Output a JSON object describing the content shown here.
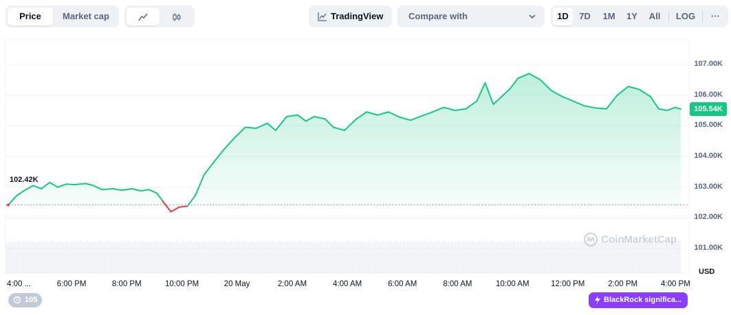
{
  "toolbar": {
    "metric_tabs": [
      "Price",
      "Market cap"
    ],
    "active_metric": "Price",
    "tradingview_label": "TradingView",
    "compare_placeholder": "Compare with",
    "ranges": [
      "1D",
      "7D",
      "1M",
      "1Y",
      "All"
    ],
    "active_range": "1D",
    "log_label": "LOG",
    "more_label": "···"
  },
  "colors": {
    "up": "#16c784",
    "down": "#ea3943",
    "accent": "#8a3ffc"
  },
  "chart_data": {
    "type": "area",
    "currency_label": "USD",
    "open_price_label": "102.42K",
    "current_price_label": "105.54K",
    "open_price": 102.42,
    "current_price": 105.54,
    "y_ticks": [
      "107.00K",
      "106.00K",
      "105.00K",
      "104.00K",
      "103.00K",
      "102.00K",
      "101.00K"
    ],
    "y_tick_values": [
      107,
      106,
      105,
      104,
      103,
      102,
      101
    ],
    "ylim": [
      100.2,
      107.8
    ],
    "x_ticks": [
      "4:00 ...",
      "6:00 PM",
      "8:00 PM",
      "10:00 PM",
      "20 May",
      "2:00 AM",
      "4:00 AM",
      "6:00 AM",
      "8:00 AM",
      "10:00 AM",
      "12:00 PM",
      "2:00 PM",
      "4:00 PM"
    ],
    "x_tick_hours": [
      0,
      2,
      4,
      6,
      8,
      10,
      12,
      14,
      16,
      18,
      20,
      22,
      24
    ],
    "x_range_hours": [
      -0.4,
      24.4
    ],
    "series": [
      {
        "unit": "thousand USD",
        "points": [
          [
            -0.3,
            102.42
          ],
          [
            0.0,
            102.72
          ],
          [
            0.3,
            102.9
          ],
          [
            0.6,
            103.05
          ],
          [
            0.9,
            102.95
          ],
          [
            1.2,
            103.15
          ],
          [
            1.5,
            103.0
          ],
          [
            1.8,
            103.1
          ],
          [
            2.1,
            103.08
          ],
          [
            2.5,
            103.12
          ],
          [
            2.8,
            103.05
          ],
          [
            3.1,
            102.92
          ],
          [
            3.5,
            102.95
          ],
          [
            3.8,
            102.9
          ],
          [
            4.2,
            102.95
          ],
          [
            4.5,
            102.88
          ],
          [
            4.8,
            102.92
          ],
          [
            5.1,
            102.8
          ],
          [
            5.3,
            102.55
          ],
          [
            5.6,
            102.2
          ],
          [
            5.9,
            102.35
          ],
          [
            6.2,
            102.38
          ],
          [
            6.5,
            102.75
          ],
          [
            6.8,
            103.4
          ],
          [
            7.1,
            103.75
          ],
          [
            7.5,
            104.2
          ],
          [
            7.9,
            104.6
          ],
          [
            8.3,
            104.95
          ],
          [
            8.7,
            104.92
          ],
          [
            9.1,
            105.08
          ],
          [
            9.4,
            104.85
          ],
          [
            9.8,
            105.3
          ],
          [
            10.2,
            105.35
          ],
          [
            10.5,
            105.15
          ],
          [
            10.8,
            105.3
          ],
          [
            11.2,
            105.22
          ],
          [
            11.5,
            104.95
          ],
          [
            11.9,
            104.85
          ],
          [
            12.3,
            105.2
          ],
          [
            12.7,
            105.45
          ],
          [
            13.1,
            105.35
          ],
          [
            13.5,
            105.45
          ],
          [
            13.9,
            105.28
          ],
          [
            14.3,
            105.18
          ],
          [
            14.7,
            105.32
          ],
          [
            15.1,
            105.45
          ],
          [
            15.5,
            105.6
          ],
          [
            15.9,
            105.5
          ],
          [
            16.3,
            105.55
          ],
          [
            16.7,
            105.8
          ],
          [
            17.0,
            106.4
          ],
          [
            17.3,
            105.7
          ],
          [
            17.6,
            105.95
          ],
          [
            17.9,
            106.2
          ],
          [
            18.2,
            106.55
          ],
          [
            18.6,
            106.7
          ],
          [
            19.0,
            106.5
          ],
          [
            19.4,
            106.15
          ],
          [
            19.8,
            105.95
          ],
          [
            20.2,
            105.8
          ],
          [
            20.6,
            105.65
          ],
          [
            21.0,
            105.58
          ],
          [
            21.4,
            105.55
          ],
          [
            21.8,
            106.0
          ],
          [
            22.2,
            106.28
          ],
          [
            22.6,
            106.18
          ],
          [
            23.0,
            105.95
          ],
          [
            23.3,
            105.55
          ],
          [
            23.6,
            105.5
          ],
          [
            23.9,
            105.6
          ],
          [
            24.1,
            105.54
          ]
        ]
      }
    ],
    "watermark": "CoinMarketCap",
    "events_count": "105",
    "news_badge": "BlackRock significa..."
  }
}
